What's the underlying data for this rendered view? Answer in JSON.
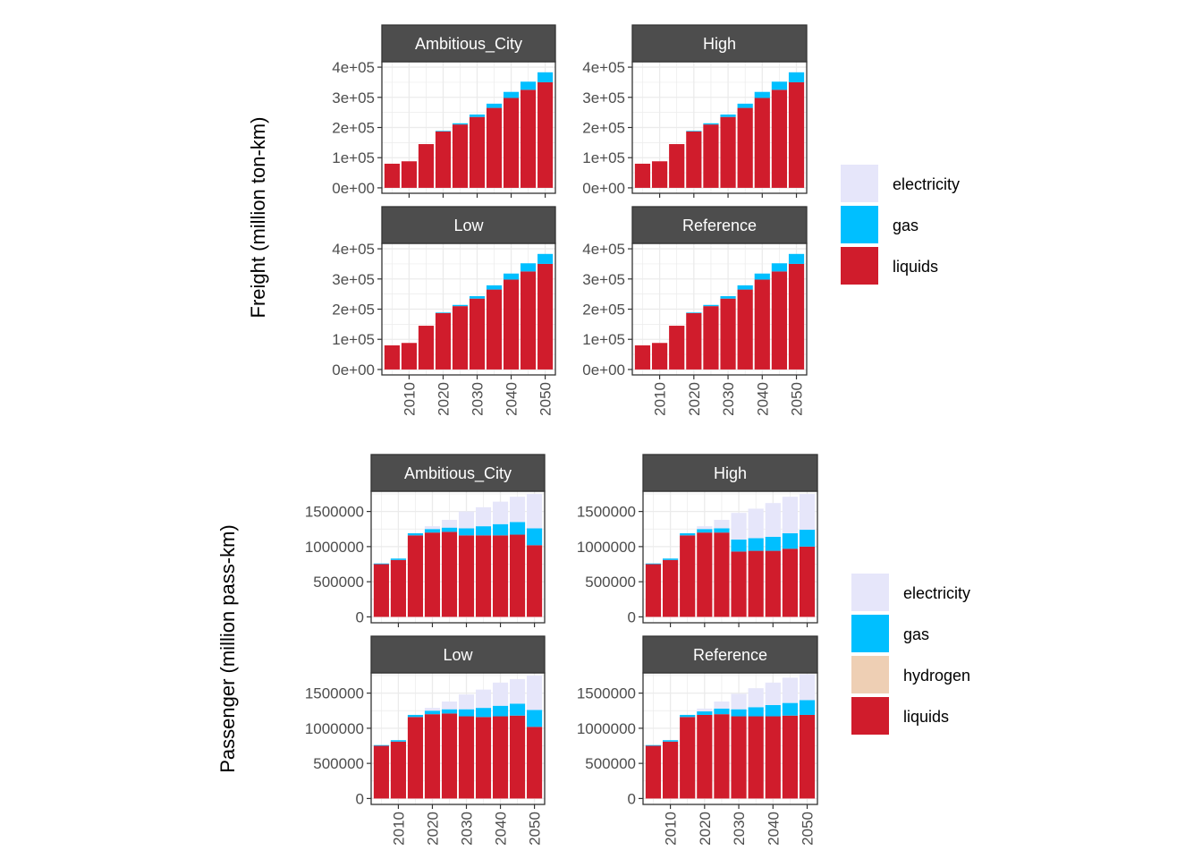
{
  "colors": {
    "electricity": "#E6E6FA",
    "gas": "#00BFFF",
    "hydrogen": "#EECFB4",
    "liquids": "#D01C2C",
    "strip": "#4D4D4D",
    "grid": "#EBEBEB",
    "border": "#333333"
  },
  "chart_data": [
    {
      "type": "bar",
      "stacked": true,
      "ylabel": "Freight (million ton-km)",
      "y_ticks": [
        "0e+00",
        "1e+05",
        "2e+05",
        "3e+05",
        "4e+05"
      ],
      "y_tick_values": [
        0,
        100000,
        200000,
        300000,
        400000
      ],
      "ylim": [
        0,
        400000
      ],
      "x_ticks": [
        "2010",
        "2020",
        "2030",
        "2040",
        "2050"
      ],
      "x_tick_values": [
        2010,
        2020,
        2030,
        2040,
        2050
      ],
      "x": [
        2005,
        2010,
        2015,
        2020,
        2025,
        2030,
        2035,
        2040,
        2045,
        2050
      ],
      "legend": [
        "electricity",
        "gas",
        "liquids"
      ],
      "stack_order": [
        "liquids",
        "gas",
        "electricity"
      ],
      "panels": [
        {
          "name": "Ambitious_City",
          "series": [
            {
              "name": "liquids",
              "values": [
                80000,
                88000,
                145000,
                187000,
                210000,
                235000,
                265000,
                298000,
                325000,
                350000
              ]
            },
            {
              "name": "gas",
              "values": [
                0,
                0,
                0,
                2000,
                4000,
                8000,
                14000,
                20000,
                27000,
                33000
              ]
            },
            {
              "name": "electricity",
              "values": [
                0,
                0,
                0,
                0,
                0,
                0,
                0,
                0,
                0,
                0
              ]
            }
          ]
        },
        {
          "name": "High",
          "series": [
            {
              "name": "liquids",
              "values": [
                80000,
                88000,
                145000,
                187000,
                210000,
                235000,
                265000,
                298000,
                325000,
                350000
              ]
            },
            {
              "name": "gas",
              "values": [
                0,
                0,
                0,
                2000,
                4000,
                8000,
                14000,
                20000,
                27000,
                33000
              ]
            },
            {
              "name": "electricity",
              "values": [
                0,
                0,
                0,
                0,
                0,
                0,
                0,
                0,
                0,
                0
              ]
            }
          ]
        },
        {
          "name": "Low",
          "series": [
            {
              "name": "liquids",
              "values": [
                80000,
                88000,
                145000,
                187000,
                210000,
                235000,
                265000,
                298000,
                325000,
                350000
              ]
            },
            {
              "name": "gas",
              "values": [
                0,
                0,
                0,
                2000,
                4000,
                8000,
                14000,
                20000,
                27000,
                33000
              ]
            },
            {
              "name": "electricity",
              "values": [
                0,
                0,
                0,
                0,
                0,
                0,
                0,
                0,
                0,
                0
              ]
            }
          ]
        },
        {
          "name": "Reference",
          "series": [
            {
              "name": "liquids",
              "values": [
                80000,
                88000,
                145000,
                187000,
                210000,
                235000,
                265000,
                298000,
                325000,
                350000
              ]
            },
            {
              "name": "gas",
              "values": [
                0,
                0,
                0,
                2000,
                4000,
                8000,
                14000,
                20000,
                27000,
                33000
              ]
            },
            {
              "name": "electricity",
              "values": [
                0,
                0,
                0,
                0,
                0,
                0,
                0,
                0,
                0,
                0
              ]
            }
          ]
        }
      ]
    },
    {
      "type": "bar",
      "stacked": true,
      "ylabel": "Passenger (million pass-km)",
      "y_ticks": [
        "0",
        "500000",
        "1000000",
        "1500000"
      ],
      "y_tick_values": [
        0,
        500000,
        1000000,
        1500000
      ],
      "ylim": [
        0,
        1750000
      ],
      "x_ticks": [
        "2010",
        "2020",
        "2030",
        "2040",
        "2050"
      ],
      "x_tick_values": [
        2010,
        2020,
        2030,
        2040,
        2050
      ],
      "x": [
        2005,
        2010,
        2015,
        2020,
        2025,
        2030,
        2035,
        2040,
        2045,
        2050
      ],
      "legend": [
        "electricity",
        "gas",
        "hydrogen",
        "liquids"
      ],
      "stack_order": [
        "liquids",
        "hydrogen",
        "gas",
        "electricity"
      ],
      "panels": [
        {
          "name": "Ambitious_City",
          "series": [
            {
              "name": "liquids",
              "values": [
                750000,
                810000,
                1160000,
                1200000,
                1210000,
                1160000,
                1160000,
                1160000,
                1170000,
                1020000
              ]
            },
            {
              "name": "hydrogen",
              "values": [
                0,
                0,
                0,
                0,
                0,
                0,
                0,
                0,
                0,
                0
              ]
            },
            {
              "name": "gas",
              "values": [
                10000,
                20000,
                30000,
                50000,
                60000,
                100000,
                130000,
                160000,
                180000,
                240000
              ]
            },
            {
              "name": "electricity",
              "values": [
                0,
                0,
                0,
                40000,
                110000,
                240000,
                270000,
                320000,
                360000,
                490000
              ]
            }
          ]
        },
        {
          "name": "High",
          "series": [
            {
              "name": "liquids",
              "values": [
                750000,
                810000,
                1160000,
                1200000,
                1200000,
                930000,
                940000,
                940000,
                970000,
                1000000
              ]
            },
            {
              "name": "hydrogen",
              "values": [
                0,
                0,
                0,
                0,
                0,
                0,
                0,
                0,
                0,
                0
              ]
            },
            {
              "name": "gas",
              "values": [
                10000,
                20000,
                30000,
                50000,
                60000,
                170000,
                180000,
                200000,
                220000,
                240000
              ]
            },
            {
              "name": "electricity",
              "values": [
                0,
                0,
                0,
                40000,
                120000,
                380000,
                420000,
                480000,
                520000,
                510000
              ]
            }
          ]
        },
        {
          "name": "Low",
          "series": [
            {
              "name": "liquids",
              "values": [
                750000,
                810000,
                1160000,
                1200000,
                1210000,
                1170000,
                1160000,
                1170000,
                1180000,
                1020000
              ]
            },
            {
              "name": "hydrogen",
              "values": [
                0,
                0,
                0,
                0,
                0,
                0,
                0,
                0,
                0,
                0
              ]
            },
            {
              "name": "gas",
              "values": [
                10000,
                20000,
                30000,
                50000,
                60000,
                100000,
                130000,
                150000,
                170000,
                240000
              ]
            },
            {
              "name": "electricity",
              "values": [
                0,
                0,
                0,
                40000,
                110000,
                210000,
                260000,
                330000,
                350000,
                490000
              ]
            }
          ]
        },
        {
          "name": "Reference",
          "series": [
            {
              "name": "liquids",
              "values": [
                750000,
                810000,
                1160000,
                1190000,
                1200000,
                1170000,
                1170000,
                1170000,
                1180000,
                1190000
              ]
            },
            {
              "name": "hydrogen",
              "values": [
                0,
                0,
                0,
                0,
                0,
                0,
                0,
                0,
                0,
                0
              ]
            },
            {
              "name": "gas",
              "values": [
                10000,
                20000,
                30000,
                50000,
                80000,
                100000,
                130000,
                160000,
                180000,
                210000
              ]
            },
            {
              "name": "electricity",
              "values": [
                0,
                0,
                0,
                40000,
                100000,
                220000,
                270000,
                320000,
                360000,
                370000
              ]
            }
          ]
        }
      ]
    }
  ]
}
